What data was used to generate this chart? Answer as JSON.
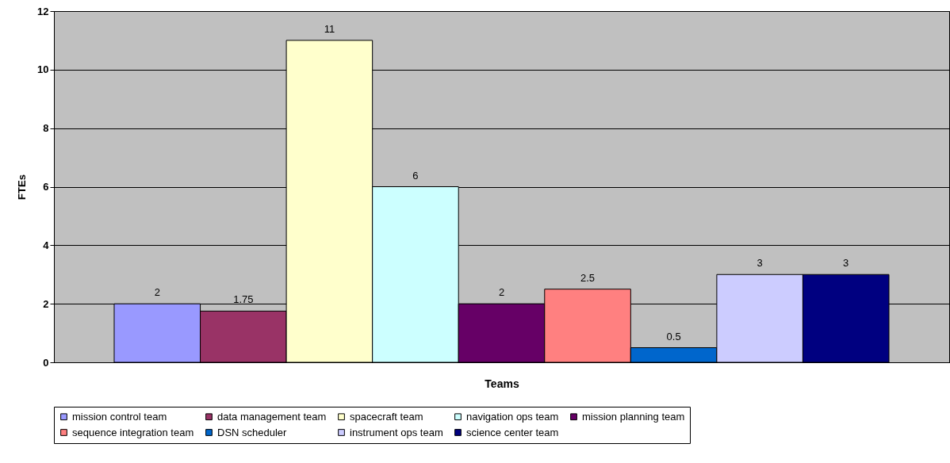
{
  "chart_data": {
    "type": "bar",
    "xlabel": "Teams",
    "ylabel": "FTEs",
    "categories": [
      null
    ],
    "series": [
      {
        "name": "mission control team",
        "color": "#9999ff",
        "values": [
          2
        ]
      },
      {
        "name": "data management team",
        "color": "#993366",
        "values": [
          1.75
        ]
      },
      {
        "name": "spacecraft team",
        "color": "#ffffcc",
        "values": [
          11
        ]
      },
      {
        "name": "navigation ops team",
        "color": "#ccffff",
        "values": [
          6
        ]
      },
      {
        "name": "mission planning team",
        "color": "#660066",
        "values": [
          2
        ]
      },
      {
        "name": "sequence integration team",
        "color": "#ff8080",
        "values": [
          2.5
        ]
      },
      {
        "name": "DSN scheduler",
        "color": "#0066cc",
        "values": [
          0.5
        ]
      },
      {
        "name": "instrument ops team",
        "color": "#ccccff",
        "values": [
          3
        ]
      },
      {
        "name": "science center team",
        "color": "#000080",
        "values": [
          3
        ]
      }
    ],
    "ylim": [
      0,
      12
    ],
    "yticks": [
      0,
      2,
      4,
      6,
      8,
      10,
      12
    ],
    "grid": "y",
    "legend": "bottom",
    "data_labels": true
  }
}
